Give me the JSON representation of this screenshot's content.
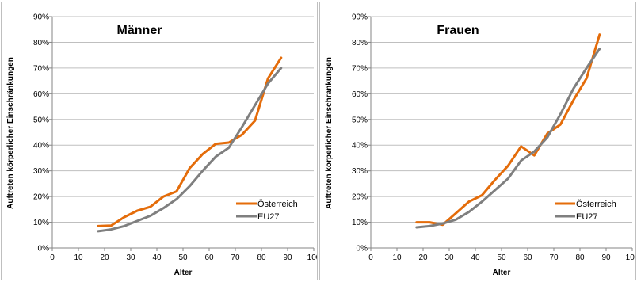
{
  "chart_data": [
    {
      "type": "line",
      "title": "Männer",
      "xlabel": "Alter",
      "ylabel": "Auftreten körperlicher Einschränkungen",
      "xlim": [
        0,
        100
      ],
      "ylim": [
        0,
        90
      ],
      "xticks": [
        "0",
        "10",
        "20",
        "30",
        "40",
        "50",
        "60",
        "70",
        "80",
        "90",
        "100"
      ],
      "yticks": [
        "0%",
        "10%",
        "20%",
        "30%",
        "40%",
        "50%",
        "60%",
        "70%",
        "80%",
        "90%"
      ],
      "grid": true,
      "legend": "bottom-right",
      "series": [
        {
          "name": "Österreich",
          "color": "#e46c0a",
          "x": [
            17.5,
            22.5,
            27.5,
            32.5,
            37.5,
            42.5,
            47.5,
            52.5,
            57.5,
            62.5,
            67.5,
            72.5,
            77.5,
            82.5,
            87.5
          ],
          "y": [
            8.5,
            8.7,
            12,
            14.5,
            16,
            20,
            22,
            31,
            36.5,
            40.5,
            41,
            44,
            49.5,
            66,
            74
          ]
        },
        {
          "name": "EU27",
          "color": "#7f7f7f",
          "x": [
            17.5,
            22.5,
            27.5,
            32.5,
            37.5,
            42.5,
            47.5,
            52.5,
            57.5,
            62.5,
            67.5,
            72.5,
            77.5,
            82.5,
            87.5
          ],
          "y": [
            6.5,
            7.2,
            8.5,
            10.5,
            12.5,
            15.5,
            19,
            24,
            30,
            35.5,
            39,
            47,
            55.5,
            64,
            70
          ]
        }
      ]
    },
    {
      "type": "line",
      "title": "Frauen",
      "xlabel": "Alter",
      "ylabel": "Auftreten körperlicher Einschränkungen",
      "xlim": [
        0,
        100
      ],
      "ylim": [
        0,
        90
      ],
      "xticks": [
        "0",
        "10",
        "20",
        "30",
        "40",
        "50",
        "60",
        "70",
        "80",
        "90",
        "100"
      ],
      "yticks": [
        "0%",
        "10%",
        "20%",
        "30%",
        "40%",
        "50%",
        "60%",
        "70%",
        "80%",
        "90%"
      ],
      "grid": true,
      "legend": "bottom-right",
      "series": [
        {
          "name": "Österreich",
          "color": "#e46c0a",
          "x": [
            17.5,
            22.5,
            27.5,
            32.5,
            37.5,
            42.5,
            47.5,
            52.5,
            57.5,
            62.5,
            67.5,
            72.5,
            77.5,
            82.5,
            87.5
          ],
          "y": [
            10,
            10,
            9,
            13.5,
            18,
            20.5,
            26.5,
            32,
            39.5,
            36,
            44.5,
            48,
            57.5,
            66,
            83
          ]
        },
        {
          "name": "EU27",
          "color": "#7f7f7f",
          "x": [
            17.5,
            22.5,
            27.5,
            32.5,
            37.5,
            42.5,
            47.5,
            52.5,
            57.5,
            62.5,
            67.5,
            72.5,
            77.5,
            82.5,
            87.5
          ],
          "y": [
            8,
            8.5,
            9.5,
            11,
            14,
            18,
            22.5,
            27,
            34,
            37.5,
            43,
            52,
            62,
            70,
            77.5
          ]
        }
      ]
    }
  ]
}
